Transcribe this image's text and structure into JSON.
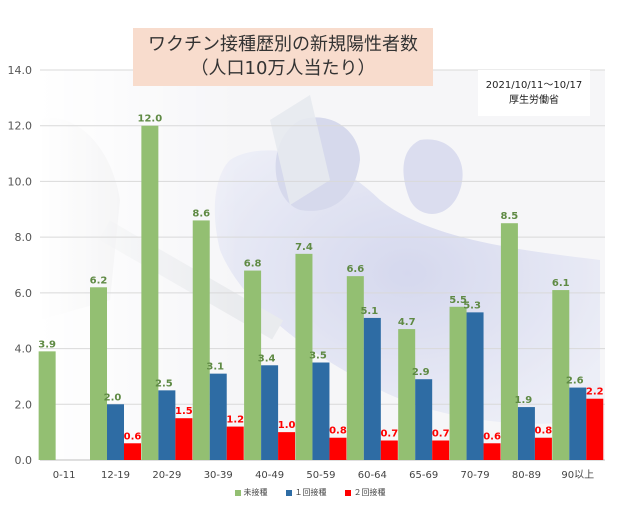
{
  "title": {
    "line1": "ワクチン接種歴別の新規陽性者数",
    "line2": "（人口10万人当たり）"
  },
  "note": {
    "period": "2021/10/11～10/17",
    "source": "厚生労働省"
  },
  "legend": {
    "items": [
      {
        "label": "未接種",
        "color": "#93bf72"
      },
      {
        "label": "１回接種",
        "color": "#2e6ca4"
      },
      {
        "label": "２回接種",
        "color": "#ff0000"
      }
    ]
  },
  "chart_data": {
    "type": "bar",
    "categories": [
      "0-11",
      "12-19",
      "20-29",
      "30-39",
      "40-49",
      "50-59",
      "60-64",
      "65-69",
      "70-79",
      "80-89",
      "90以上"
    ],
    "series": [
      {
        "name": "未接種",
        "color": "#93bf72",
        "values": [
          3.9,
          6.2,
          12.0,
          8.6,
          6.8,
          7.4,
          6.6,
          4.7,
          5.5,
          8.5,
          6.1
        ]
      },
      {
        "name": "１回接種",
        "color": "#2e6ca4",
        "values": [
          null,
          2.0,
          2.5,
          3.1,
          3.4,
          3.5,
          5.1,
          2.9,
          5.3,
          1.9,
          2.6
        ]
      },
      {
        "name": "２回接種",
        "color": "#ff0000",
        "values": [
          null,
          0.6,
          1.5,
          1.2,
          1.0,
          0.8,
          0.7,
          0.7,
          0.6,
          0.8,
          2.2
        ]
      }
    ],
    "ylim": [
      0,
      14
    ],
    "yticks": [
      "0.0",
      "2.0",
      "4.0",
      "6.0",
      "8.0",
      "10.0",
      "12.0",
      "14.0"
    ],
    "grid": true,
    "legend_position": "bottom"
  }
}
